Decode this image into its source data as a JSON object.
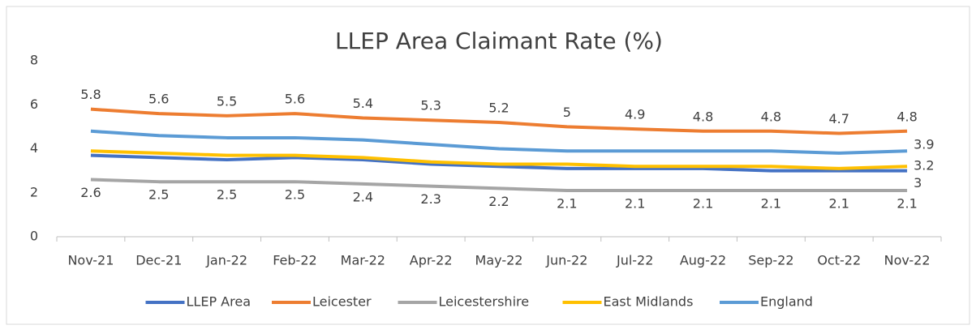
{
  "chart_data": {
    "type": "line",
    "title": "LLEP Area Claimant Rate (%)",
    "categories": [
      "Nov-21",
      "Dec-21",
      "Jan-22",
      "Feb-22",
      "Mar-22",
      "Apr-22",
      "May-22",
      "Jun-22",
      "Jul-22",
      "Aug-22",
      "Sep-22",
      "Oct-22",
      "Nov-22"
    ],
    "series": [
      {
        "name": "LLEP Area",
        "color": "#4472c4",
        "values": [
          3.7,
          3.6,
          3.5,
          3.6,
          3.5,
          3.3,
          3.2,
          3.1,
          3.1,
          3.1,
          3.0,
          3.0,
          3.0
        ],
        "data_labels": "last",
        "label_position": "right-below"
      },
      {
        "name": "Leicester",
        "color": "#ed7d31",
        "values": [
          5.8,
          5.6,
          5.5,
          5.6,
          5.4,
          5.3,
          5.2,
          5,
          4.9,
          4.8,
          4.8,
          4.7,
          4.8
        ],
        "data_labels": "all",
        "label_position": "above"
      },
      {
        "name": "Leicestershire",
        "color": "#a5a5a5",
        "values": [
          2.6,
          2.5,
          2.5,
          2.5,
          2.4,
          2.3,
          2.2,
          2.1,
          2.1,
          2.1,
          2.1,
          2.1,
          2.1
        ],
        "data_labels": "all",
        "label_position": "below"
      },
      {
        "name": "East Midlands",
        "color": "#ffc000",
        "values": [
          3.9,
          3.8,
          3.7,
          3.7,
          3.6,
          3.4,
          3.3,
          3.3,
          3.2,
          3.2,
          3.2,
          3.1,
          3.2
        ],
        "data_labels": "last",
        "label_position": "right"
      },
      {
        "name": "England",
        "color": "#5b9bd5",
        "values": [
          4.8,
          4.6,
          4.5,
          4.5,
          4.4,
          4.2,
          4.0,
          3.9,
          3.9,
          3.9,
          3.9,
          3.8,
          3.9
        ],
        "data_labels": "last",
        "label_position": "right-above"
      }
    ],
    "ylim": [
      0,
      8
    ],
    "yticks": [
      0,
      2,
      4,
      6,
      8
    ],
    "grid": false,
    "legend": "bottom"
  }
}
